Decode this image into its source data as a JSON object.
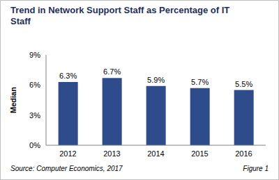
{
  "chart_data": {
    "type": "bar",
    "title": "Trend in Network Support Staff as Percentage of IT Staff",
    "y_label": "Median",
    "categories": [
      "2012",
      "2013",
      "2014",
      "2015",
      "2016"
    ],
    "values": [
      6.3,
      6.7,
      5.9,
      5.7,
      5.5
    ],
    "value_labels": [
      "6.3%",
      "6.7%",
      "5.9%",
      "5.7%",
      "5.5%"
    ],
    "color": "#2e4b8c",
    "ylim": [
      0,
      9
    ],
    "yticks": [
      {
        "value": 0,
        "label": "0%"
      },
      {
        "value": 3,
        "label": "3%"
      },
      {
        "value": 6,
        "label": "6%"
      },
      {
        "value": 9,
        "label": "9%"
      }
    ],
    "grid": false,
    "data_labels": true,
    "annotations": [
      "Source: Computer Economics, 2017",
      "Figure 1"
    ]
  }
}
